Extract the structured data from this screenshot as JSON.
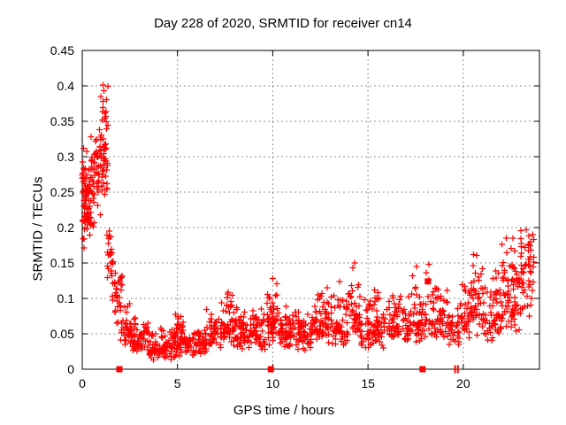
{
  "chart_data": {
    "type": "scatter",
    "title": "Day 228 of 2020, SRMTID for receiver cn14",
    "xlabel": "GPS time / hours",
    "ylabel": "SRMTID / TECUs",
    "xlim": [
      0,
      24
    ],
    "ylim": [
      0,
      0.45
    ],
    "xticks": [
      0,
      5,
      10,
      15,
      20
    ],
    "yticks": [
      0,
      0.05,
      0.1,
      0.15,
      0.2,
      0.25,
      0.3,
      0.35,
      0.4,
      0.45
    ],
    "ytick_labels": [
      "0",
      "0.05",
      "0.1",
      "0.15",
      "0.2",
      "0.25",
      "0.3",
      "0.35",
      "0.4",
      "0.45"
    ],
    "grid": "dashed-major-both",
    "legend": "none",
    "colors": {
      "points": "#ff0000",
      "grid": "#909090",
      "border": "#000000",
      "text": "#000000",
      "background": "#ffffff"
    },
    "series": [
      {
        "name": "srmtid-scatter",
        "marker": "plus",
        "color": "#ff0000",
        "seed": 42,
        "cluster_bins": [
          [
            0.0,
            0.35,
            45,
            0.145,
            0.315,
            0.25
          ],
          [
            0.05,
            0.5,
            25,
            0.185,
            0.27,
            0.22
          ],
          [
            0.35,
            0.9,
            55,
            0.19,
            0.335,
            0.27
          ],
          [
            0.9,
            1.35,
            55,
            0.21,
            0.405,
            0.3
          ],
          [
            1.3,
            1.65,
            25,
            0.1,
            0.22,
            0.15
          ],
          [
            1.6,
            2.1,
            30,
            0.055,
            0.155,
            0.11
          ],
          [
            2.0,
            2.6,
            35,
            0.03,
            0.1,
            0.055
          ],
          [
            2.5,
            3.5,
            70,
            0.018,
            0.075,
            0.04
          ],
          [
            3.5,
            5.0,
            100,
            0.012,
            0.062,
            0.03
          ],
          [
            4.8,
            5.3,
            15,
            0.04,
            0.09,
            0.06
          ],
          [
            5.0,
            6.5,
            95,
            0.015,
            0.07,
            0.038
          ],
          [
            6.5,
            8.2,
            100,
            0.025,
            0.095,
            0.055
          ],
          [
            7.6,
            8.1,
            10,
            0.08,
            0.115,
            0.09
          ],
          [
            8.2,
            9.6,
            90,
            0.025,
            0.09,
            0.05
          ],
          [
            9.7,
            10.3,
            45,
            0.03,
            0.128,
            0.07
          ],
          [
            10.3,
            12.0,
            110,
            0.025,
            0.09,
            0.05
          ],
          [
            12.0,
            13.0,
            65,
            0.03,
            0.115,
            0.058
          ],
          [
            13.0,
            14.0,
            65,
            0.03,
            0.125,
            0.06
          ],
          [
            14.0,
            14.6,
            40,
            0.04,
            0.15,
            0.08
          ],
          [
            14.6,
            16.0,
            85,
            0.025,
            0.12,
            0.055
          ],
          [
            16.0,
            17.2,
            70,
            0.03,
            0.11,
            0.058
          ],
          [
            17.2,
            18.4,
            70,
            0.035,
            0.148,
            0.07
          ],
          [
            18.4,
            19.2,
            50,
            0.035,
            0.13,
            0.068
          ],
          [
            19.2,
            19.8,
            30,
            0.03,
            0.09,
            0.055
          ],
          [
            19.8,
            20.4,
            35,
            0.04,
            0.14,
            0.075
          ],
          [
            20.4,
            21.0,
            40,
            0.045,
            0.165,
            0.09
          ],
          [
            21.0,
            22.0,
            65,
            0.035,
            0.145,
            0.075
          ],
          [
            22.0,
            23.0,
            75,
            0.045,
            0.19,
            0.105
          ],
          [
            23.0,
            23.7,
            55,
            0.065,
            0.2,
            0.13
          ]
        ],
        "highlight_points": [
          [
            1.08,
            0.401
          ],
          [
            1.14,
            0.393
          ],
          [
            1.1,
            0.378
          ],
          [
            1.18,
            0.362
          ],
          [
            1.05,
            0.352
          ],
          [
            0.08,
            0.312
          ],
          [
            10.0,
            0.128
          ],
          [
            12.85,
            0.115
          ],
          [
            13.5,
            0.124
          ],
          [
            14.3,
            0.15
          ],
          [
            17.55,
            0.145
          ],
          [
            18.2,
            0.148
          ],
          [
            20.55,
            0.162
          ],
          [
            23.3,
            0.197
          ],
          [
            23.45,
            0.188
          ],
          [
            22.6,
            0.185
          ]
        ]
      },
      {
        "name": "event-squares",
        "marker": "filled-square",
        "color": "#ff0000",
        "points": [
          [
            1.95,
            0
          ],
          [
            9.9,
            0
          ],
          [
            17.86,
            0
          ],
          [
            18.14,
            0.124
          ]
        ]
      },
      {
        "name": "event-bars",
        "marker": "vbar",
        "color": "#ff0000",
        "points": [
          [
            19.57,
            0
          ],
          [
            19.72,
            0
          ]
        ]
      }
    ]
  }
}
